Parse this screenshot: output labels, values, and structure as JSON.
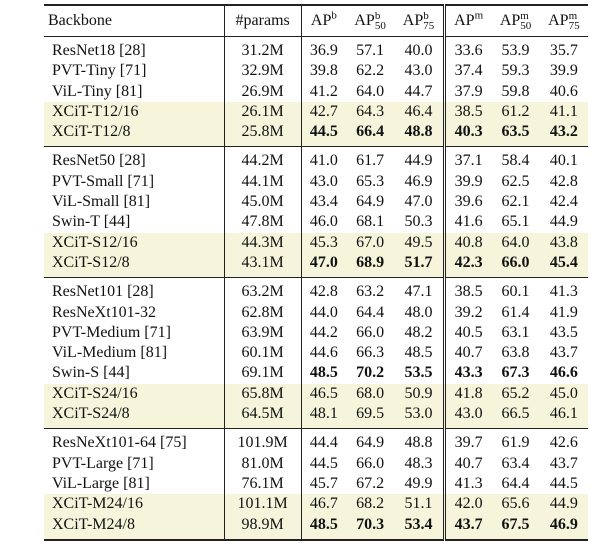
{
  "table": {
    "header": [
      {
        "base": "Backbone"
      },
      {
        "base": "#params"
      },
      {
        "base": "AP",
        "sup": "b"
      },
      {
        "base": "AP",
        "sup": "b",
        "sub": "50"
      },
      {
        "base": "AP",
        "sup": "b",
        "sub": "75"
      },
      {
        "base": "AP",
        "sup": "m"
      },
      {
        "base": "AP",
        "sup": "m",
        "sub": "50"
      },
      {
        "base": "AP",
        "sup": "m",
        "sub": "75"
      }
    ],
    "groups": [
      {
        "rows": [
          {
            "cells": [
              "ResNet18 [28]",
              "31.2M",
              "36.9",
              "57.1",
              "40.0",
              "33.6",
              "53.9",
              "35.7"
            ],
            "highlight": false,
            "bold": false
          },
          {
            "cells": [
              "PVT-Tiny [71]",
              "32.9M",
              "39.8",
              "62.2",
              "43.0",
              "37.4",
              "59.3",
              "39.9"
            ],
            "highlight": false,
            "bold": false
          },
          {
            "cells": [
              "ViL-Tiny [81]",
              "26.9M",
              "41.2",
              "64.0",
              "44.7",
              "37.9",
              "59.8",
              "40.6"
            ],
            "highlight": false,
            "bold": false
          },
          {
            "cells": [
              "XCiT-T12/16",
              "26.1M",
              "42.7",
              "64.3",
              "46.4",
              "38.5",
              "61.2",
              "41.1"
            ],
            "highlight": true,
            "bold": false
          },
          {
            "cells": [
              "XCiT-T12/8",
              "25.8M",
              "44.5",
              "66.4",
              "48.8",
              "40.3",
              "63.5",
              "43.2"
            ],
            "highlight": true,
            "bold": true
          }
        ]
      },
      {
        "rows": [
          {
            "cells": [
              "ResNet50 [28]",
              "44.2M",
              "41.0",
              "61.7",
              "44.9",
              "37.1",
              "58.4",
              "40.1"
            ],
            "highlight": false,
            "bold": false
          },
          {
            "cells": [
              "PVT-Small [71]",
              "44.1M",
              "43.0",
              "65.3",
              "46.9",
              "39.9",
              "62.5",
              "42.8"
            ],
            "highlight": false,
            "bold": false
          },
          {
            "cells": [
              "ViL-Small [81]",
              "45.0M",
              "43.4",
              "64.9",
              "47.0",
              "39.6",
              "62.1",
              "42.4"
            ],
            "highlight": false,
            "bold": false
          },
          {
            "cells": [
              "Swin-T [44]",
              "47.8M",
              "46.0",
              "68.1",
              "50.3",
              "41.6",
              "65.1",
              "44.9"
            ],
            "highlight": false,
            "bold": false
          },
          {
            "cells": [
              "XCiT-S12/16",
              "44.3M",
              "45.3",
              "67.0",
              "49.5",
              "40.8",
              "64.0",
              "43.8"
            ],
            "highlight": true,
            "bold": false
          },
          {
            "cells": [
              "XCiT-S12/8",
              "43.1M",
              "47.0",
              "68.9",
              "51.7",
              "42.3",
              "66.0",
              "45.4"
            ],
            "highlight": true,
            "bold": true
          }
        ]
      },
      {
        "rows": [
          {
            "cells": [
              "ResNet101 [28]",
              "63.2M",
              "42.8",
              "63.2",
              "47.1",
              "38.5",
              "60.1",
              "41.3"
            ],
            "highlight": false,
            "bold": false
          },
          {
            "cells": [
              "ResNeXt101-32",
              "62.8M",
              "44.0",
              "64.4",
              "48.0",
              "39.2",
              "61.4",
              "41.9"
            ],
            "highlight": false,
            "bold": false
          },
          {
            "cells": [
              "PVT-Medium [71]",
              "63.9M",
              "44.2",
              "66.0",
              "48.2",
              "40.5",
              "63.1",
              "43.5"
            ],
            "highlight": false,
            "bold": false
          },
          {
            "cells": [
              "ViL-Medium [81]",
              "60.1M",
              "44.6",
              "66.3",
              "48.5",
              "40.7",
              "63.8",
              "43.7"
            ],
            "highlight": false,
            "bold": false
          },
          {
            "cells": [
              "Swin-S [44]",
              "69.1M",
              "48.5",
              "70.2",
              "53.5",
              "43.3",
              "67.3",
              "46.6"
            ],
            "highlight": false,
            "bold": true
          },
          {
            "cells": [
              "XCiT-S24/16",
              "65.8M",
              "46.5",
              "68.0",
              "50.9",
              "41.8",
              "65.2",
              "45.0"
            ],
            "highlight": true,
            "bold": false
          },
          {
            "cells": [
              "XCiT-S24/8",
              "64.5M",
              "48.1",
              "69.5",
              "53.0",
              "43.0",
              "66.5",
              "46.1"
            ],
            "highlight": true,
            "bold": false
          }
        ]
      },
      {
        "rows": [
          {
            "cells": [
              "ResNeXt101-64 [75]",
              "101.9M",
              "44.4",
              "64.9",
              "48.8",
              "39.7",
              "61.9",
              "42.6"
            ],
            "highlight": false,
            "bold": false
          },
          {
            "cells": [
              "PVT-Large [71]",
              "81.0M",
              "44.5",
              "66.0",
              "48.3",
              "40.7",
              "63.4",
              "43.7"
            ],
            "highlight": false,
            "bold": false
          },
          {
            "cells": [
              "ViL-Large [81]",
              "76.1M",
              "45.7",
              "67.2",
              "49.9",
              "41.3",
              "64.4",
              "44.5"
            ],
            "highlight": false,
            "bold": false
          },
          {
            "cells": [
              "XCiT-M24/16",
              "101.1M",
              "46.7",
              "68.2",
              "51.1",
              "42.0",
              "65.6",
              "44.9"
            ],
            "highlight": true,
            "bold": false
          },
          {
            "cells": [
              "XCiT-M24/8",
              "98.9M",
              "48.5",
              "70.3",
              "53.4",
              "43.7",
              "67.5",
              "46.9"
            ],
            "highlight": true,
            "bold": true
          }
        ]
      }
    ]
  }
}
